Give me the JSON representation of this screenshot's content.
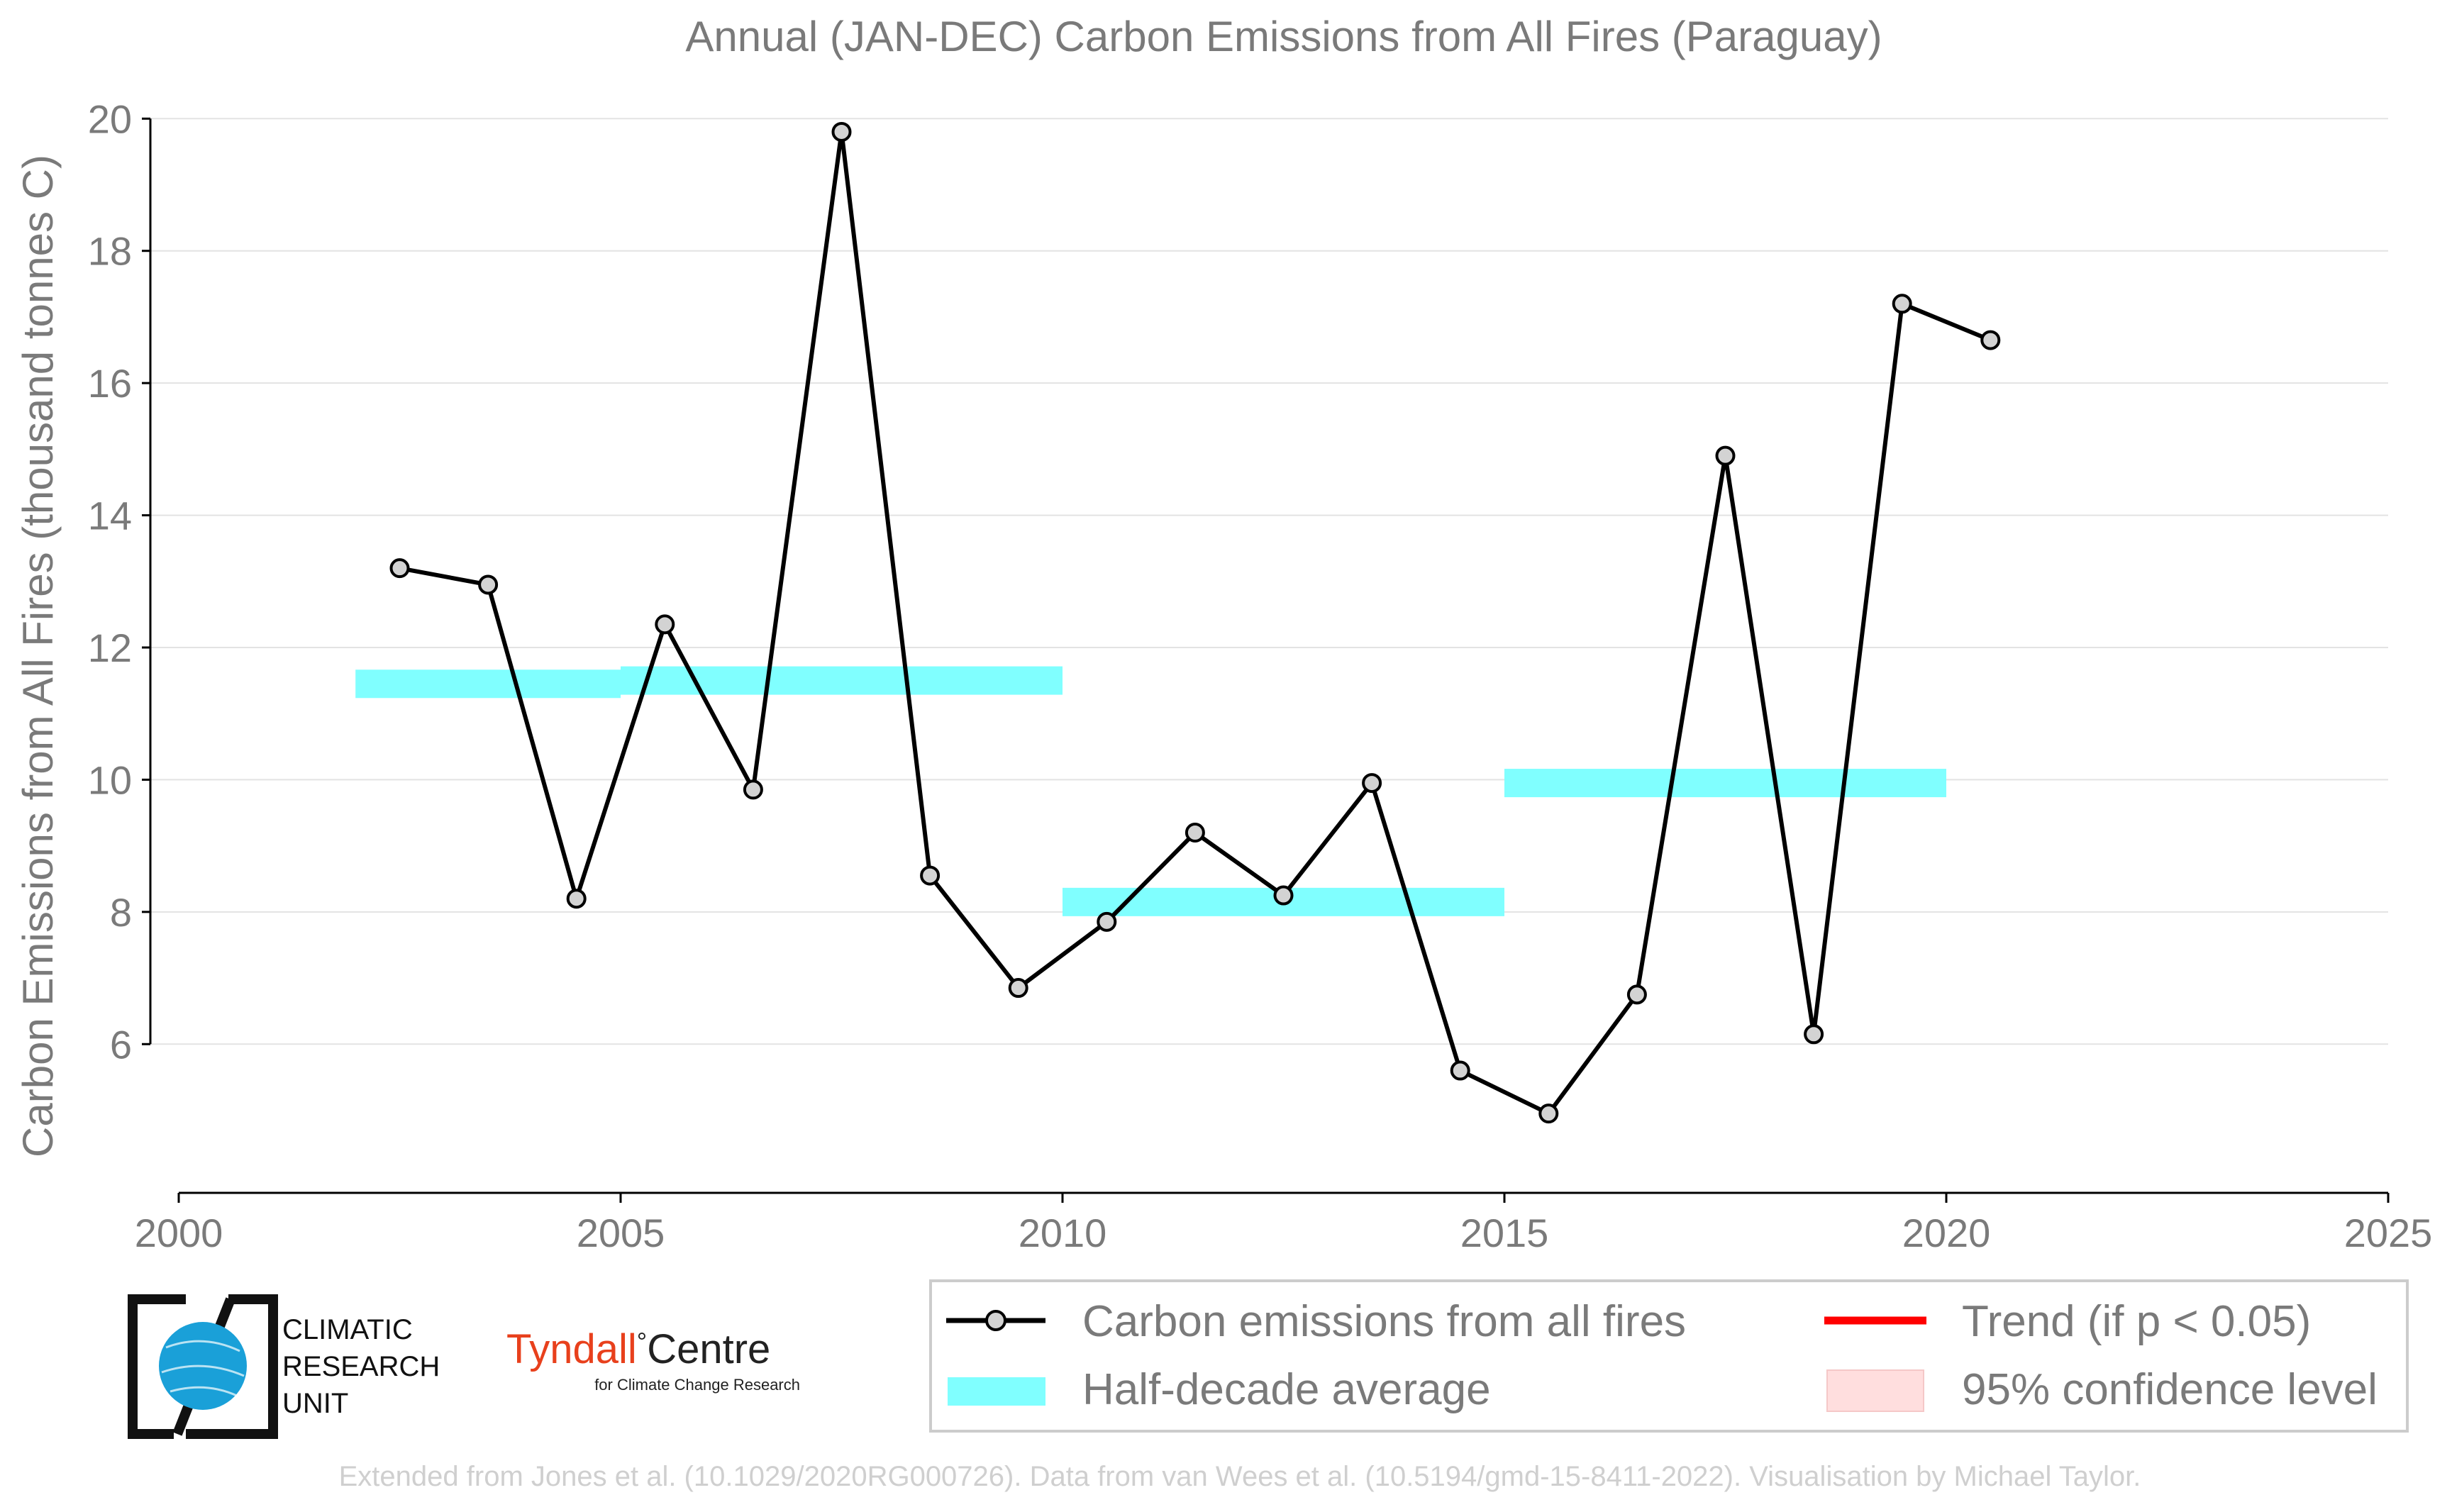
{
  "chart_data": {
    "type": "line",
    "title": "Annual (JAN-DEC) Carbon Emissions from All Fires (Paraguay)",
    "xlabel": "",
    "ylabel": "Carbon Emissions from All Fires (thousand tonnes C)",
    "xlim": [
      2000,
      2025
    ],
    "ylim": [
      3.75,
      20.25
    ],
    "x_ticks": [
      2000,
      2005,
      2010,
      2015,
      2020,
      2025
    ],
    "y_ticks": [
      6,
      8,
      10,
      12,
      14,
      16,
      18,
      20
    ],
    "grid": "horizontal",
    "series": [
      {
        "name": "Carbon emissions from all fires",
        "color": "#000000",
        "marker_fill": "#d3d3d3",
        "x": [
          2002.5,
          2003.5,
          2004.5,
          2005.5,
          2006.5,
          2007.5,
          2008.5,
          2009.5,
          2010.5,
          2011.5,
          2012.5,
          2013.5,
          2014.5,
          2015.5,
          2016.5,
          2017.5,
          2018.5,
          2019.5,
          2020.5
        ],
        "values": [
          13.2,
          12.95,
          8.2,
          12.35,
          9.85,
          19.8,
          8.55,
          6.85,
          7.85,
          9.2,
          8.25,
          9.95,
          5.6,
          4.95,
          6.75,
          14.9,
          6.15,
          17.2,
          16.65
        ]
      }
    ],
    "half_decade_averages": {
      "name": "Half-decade average",
      "color": "#80ffff",
      "segments": [
        {
          "x_start": 2002,
          "x_end": 2005,
          "value": 11.45
        },
        {
          "x_start": 2005,
          "x_end": 2010,
          "value": 11.5
        },
        {
          "x_start": 2010,
          "x_end": 2015,
          "value": 8.15
        },
        {
          "x_start": 2015,
          "x_end": 2020,
          "value": 9.95
        }
      ]
    },
    "legend": {
      "position": "bottom-right",
      "entries": [
        {
          "label": "Carbon emissions from all fires",
          "kind": "line-marker",
          "color": "#000000"
        },
        {
          "label": "Trend (if p < 0.05)",
          "kind": "line",
          "color": "#ff0000"
        },
        {
          "label": "Half-decade average",
          "kind": "band",
          "color": "#80ffff"
        },
        {
          "label": "95% confidence level",
          "kind": "patch",
          "color": "#ffdede"
        }
      ]
    }
  },
  "logos": {
    "cru": {
      "line1": "CLIMATIC",
      "line2": "RESEARCH",
      "line3": "UNIT",
      "globe_color": "#1aa0d8"
    },
    "tyndall": {
      "name": "Tyndall",
      "degree": "°",
      "centre": "Centre",
      "sub": "for Climate Change Research",
      "color": "#e8401c"
    }
  },
  "footer": "Extended from Jones et al. (10.1029/2020RG000726). Data from van Wees et al. (10.5194/gmd-15-8411-2022). Visualisation by Michael Taylor."
}
